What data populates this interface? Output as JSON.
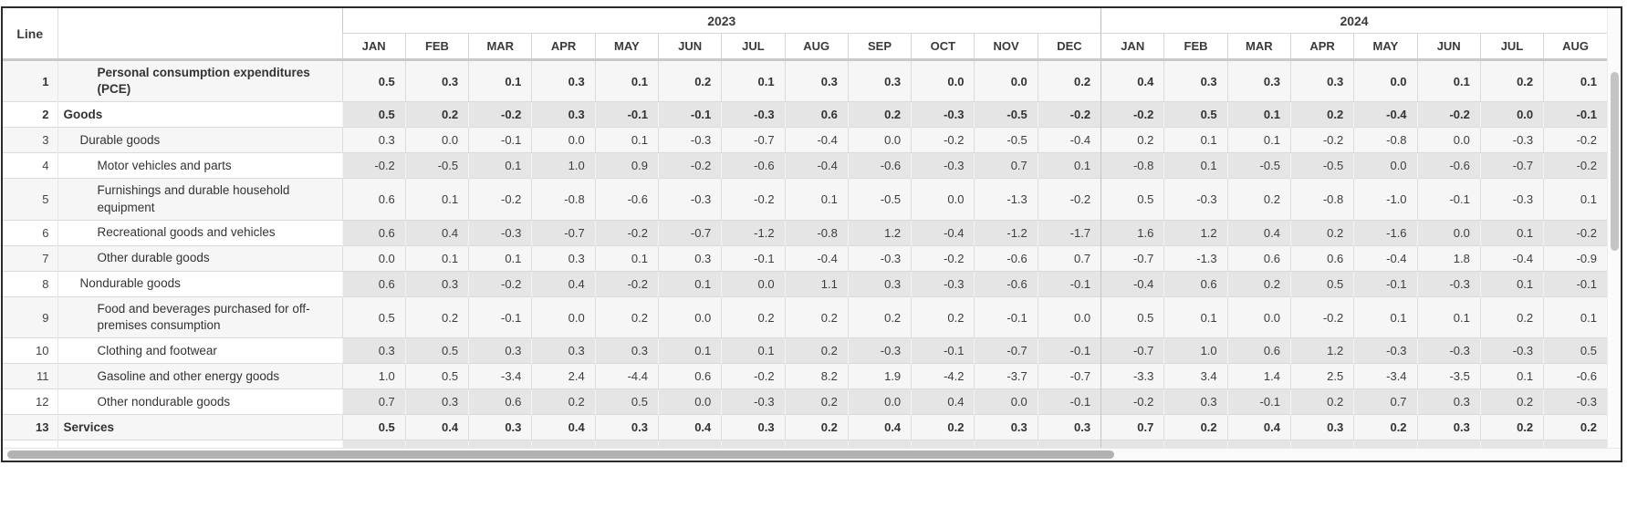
{
  "table": {
    "line_header": "Line",
    "description_header": "",
    "year_groups": [
      {
        "label": "2023",
        "months": [
          "JAN",
          "FEB",
          "MAR",
          "APR",
          "MAY",
          "JUN",
          "JUL",
          "AUG",
          "SEP",
          "OCT",
          "NOV",
          "DEC"
        ]
      },
      {
        "label": "2024",
        "months": [
          "JAN",
          "FEB",
          "MAR",
          "APR",
          "MAY",
          "JUN",
          "JUL",
          "AUG"
        ]
      }
    ],
    "rows": [
      {
        "line": "1",
        "label": "Personal consumption expenditures (PCE)",
        "indent": 2,
        "bold": true,
        "values": [
          "0.5",
          "0.3",
          "0.1",
          "0.3",
          "0.1",
          "0.2",
          "0.1",
          "0.3",
          "0.3",
          "0.0",
          "0.0",
          "0.2",
          "0.4",
          "0.3",
          "0.3",
          "0.3",
          "0.0",
          "0.1",
          "0.2",
          "0.1"
        ]
      },
      {
        "line": "2",
        "label": "Goods",
        "indent": 0,
        "bold": true,
        "values": [
          "0.5",
          "0.2",
          "-0.2",
          "0.3",
          "-0.1",
          "-0.1",
          "-0.3",
          "0.6",
          "0.2",
          "-0.3",
          "-0.5",
          "-0.2",
          "-0.2",
          "0.5",
          "0.1",
          "0.2",
          "-0.4",
          "-0.2",
          "0.0",
          "-0.1"
        ]
      },
      {
        "line": "3",
        "label": "Durable goods",
        "indent": 1,
        "bold": false,
        "values": [
          "0.3",
          "0.0",
          "-0.1",
          "0.0",
          "0.1",
          "-0.3",
          "-0.7",
          "-0.4",
          "0.0",
          "-0.2",
          "-0.5",
          "-0.4",
          "0.2",
          "0.1",
          "0.1",
          "-0.2",
          "-0.8",
          "0.0",
          "-0.3",
          "-0.2"
        ]
      },
      {
        "line": "4",
        "label": "Motor vehicles and parts",
        "indent": 2,
        "bold": false,
        "values": [
          "-0.2",
          "-0.5",
          "0.1",
          "1.0",
          "0.9",
          "-0.2",
          "-0.6",
          "-0.4",
          "-0.6",
          "-0.3",
          "0.7",
          "0.1",
          "-0.8",
          "0.1",
          "-0.5",
          "-0.5",
          "0.0",
          "-0.6",
          "-0.7",
          "-0.2"
        ]
      },
      {
        "line": "5",
        "label": "Furnishings and durable household equipment",
        "indent": 2,
        "bold": false,
        "values": [
          "0.6",
          "0.1",
          "-0.2",
          "-0.8",
          "-0.6",
          "-0.3",
          "-0.2",
          "0.1",
          "-0.5",
          "0.0",
          "-1.3",
          "-0.2",
          "0.5",
          "-0.3",
          "0.2",
          "-0.8",
          "-1.0",
          "-0.1",
          "-0.3",
          "0.1"
        ]
      },
      {
        "line": "6",
        "label": "Recreational goods and vehicles",
        "indent": 2,
        "bold": false,
        "values": [
          "0.6",
          "0.4",
          "-0.3",
          "-0.7",
          "-0.2",
          "-0.7",
          "-1.2",
          "-0.8",
          "1.2",
          "-0.4",
          "-1.2",
          "-1.7",
          "1.6",
          "1.2",
          "0.4",
          "0.2",
          "-1.6",
          "0.0",
          "0.1",
          "-0.2"
        ]
      },
      {
        "line": "7",
        "label": "Other durable goods",
        "indent": 2,
        "bold": false,
        "values": [
          "0.0",
          "0.1",
          "0.1",
          "0.3",
          "0.1",
          "0.3",
          "-0.1",
          "-0.4",
          "-0.3",
          "-0.2",
          "-0.6",
          "0.7",
          "-0.7",
          "-1.3",
          "0.6",
          "0.6",
          "-0.4",
          "1.8",
          "-0.4",
          "-0.9"
        ]
      },
      {
        "line": "8",
        "label": "Nondurable goods",
        "indent": 1,
        "bold": false,
        "values": [
          "0.6",
          "0.3",
          "-0.2",
          "0.4",
          "-0.2",
          "0.1",
          "0.0",
          "1.1",
          "0.3",
          "-0.3",
          "-0.6",
          "-0.1",
          "-0.4",
          "0.6",
          "0.2",
          "0.5",
          "-0.1",
          "-0.3",
          "0.1",
          "-0.1"
        ]
      },
      {
        "line": "9",
        "label": "Food and beverages purchased for off-premises consumption",
        "indent": 2,
        "bold": false,
        "values": [
          "0.5",
          "0.2",
          "-0.1",
          "0.0",
          "0.2",
          "0.0",
          "0.2",
          "0.2",
          "0.2",
          "0.2",
          "-0.1",
          "0.0",
          "0.5",
          "0.1",
          "0.0",
          "-0.2",
          "0.1",
          "0.1",
          "0.2",
          "0.1"
        ]
      },
      {
        "line": "10",
        "label": "Clothing and footwear",
        "indent": 2,
        "bold": false,
        "values": [
          "0.3",
          "0.5",
          "0.3",
          "0.3",
          "0.3",
          "0.1",
          "0.1",
          "0.2",
          "-0.3",
          "-0.1",
          "-0.7",
          "-0.1",
          "-0.7",
          "1.0",
          "0.6",
          "1.2",
          "-0.3",
          "-0.3",
          "-0.3",
          "0.5"
        ]
      },
      {
        "line": "11",
        "label": "Gasoline and other energy goods",
        "indent": 2,
        "bold": false,
        "values": [
          "1.0",
          "0.5",
          "-3.4",
          "2.4",
          "-4.4",
          "0.6",
          "-0.2",
          "8.2",
          "1.9",
          "-4.2",
          "-3.7",
          "-0.7",
          "-3.3",
          "3.4",
          "1.4",
          "2.5",
          "-3.4",
          "-3.5",
          "0.1",
          "-0.6"
        ]
      },
      {
        "line": "12",
        "label": "Other nondurable goods",
        "indent": 2,
        "bold": false,
        "values": [
          "0.7",
          "0.3",
          "0.6",
          "0.2",
          "0.5",
          "0.0",
          "-0.3",
          "0.2",
          "0.0",
          "0.4",
          "0.0",
          "-0.1",
          "-0.2",
          "0.3",
          "-0.1",
          "0.2",
          "0.7",
          "0.3",
          "0.2",
          "-0.3"
        ]
      },
      {
        "line": "13",
        "label": "Services",
        "indent": 0,
        "bold": true,
        "values": [
          "0.5",
          "0.4",
          "0.3",
          "0.4",
          "0.3",
          "0.4",
          "0.3",
          "0.2",
          "0.4",
          "0.2",
          "0.3",
          "0.3",
          "0.7",
          "0.2",
          "0.4",
          "0.3",
          "0.2",
          "0.3",
          "0.2",
          "0.2"
        ]
      }
    ]
  }
}
